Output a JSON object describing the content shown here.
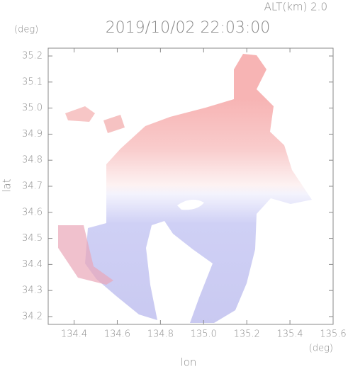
{
  "chart_data": {
    "type": "radar-field",
    "title": "2019/10/02 22:03:00",
    "altitude_label": "ALT(km) 2.0",
    "y_unit": "(deg)",
    "x_unit": "(deg)",
    "xlabel": "lon",
    "ylabel": "lat",
    "xlim": [
      134.28,
      135.6
    ],
    "ylim": [
      34.17,
      35.23
    ],
    "xticks": [
      134.4,
      134.6,
      134.8,
      {
        "value": 135.0,
        "label": "135.0"
      },
      135.2,
      135.4,
      135.6
    ],
    "yticks": [
      34.2,
      34.3,
      34.4,
      34.5,
      34.6,
      34.7,
      34.8,
      34.9,
      {
        "value": 35.0,
        "label": "35.0"
      },
      35.1,
      35.2
    ]
  }
}
